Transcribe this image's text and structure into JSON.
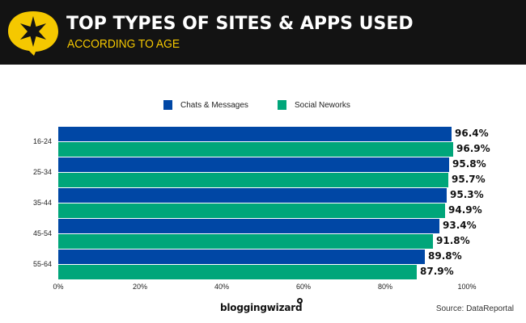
{
  "header": {
    "title": "TOP TYPES OF SITES & APPS USED",
    "subtitle": "ACCORDING TO AGE",
    "logo_icon": "star-speech-bubble-icon",
    "bg_color": "#131313",
    "accent_color": "#f5c800"
  },
  "legend": [
    {
      "label": "Chats & Messages",
      "color": "#0047a5"
    },
    {
      "label": "Social Neworks",
      "color": "#00a67a"
    }
  ],
  "rows": [
    {
      "label": "16-24",
      "chats": "96.4%",
      "social": "96.9%"
    },
    {
      "label": "25-34",
      "chats": "95.8%",
      "social": "95.7%"
    },
    {
      "label": "35-44",
      "chats": "95.3%",
      "social": "94.9%"
    },
    {
      "label": "45-54",
      "chats": "93.4%",
      "social": "91.8%"
    },
    {
      "label": "55-64",
      "chats": "89.8%",
      "social": "87.9%"
    }
  ],
  "axis": {
    "ticks": [
      "0%",
      "20%",
      "40%",
      "60%",
      "80%",
      "100%"
    ]
  },
  "footer": {
    "brand": "bloggingwizard",
    "source": "Source: DataReportal"
  },
  "chart_data": {
    "type": "bar",
    "orientation": "horizontal",
    "title": "TOP TYPES OF SITES & APPS USED",
    "subtitle": "ACCORDING TO AGE",
    "categories": [
      "16-24",
      "25-34",
      "35-44",
      "45-54",
      "55-64"
    ],
    "series": [
      {
        "name": "Chats & Messages",
        "color": "#0047a5",
        "values": [
          96.4,
          95.8,
          95.3,
          93.4,
          89.8
        ]
      },
      {
        "name": "Social Neworks",
        "color": "#00a67a",
        "values": [
          96.9,
          95.7,
          94.9,
          91.8,
          87.9
        ]
      }
    ],
    "xlabel": "",
    "ylabel": "",
    "xlim": [
      0,
      100
    ],
    "xticks": [
      "0%",
      "20%",
      "40%",
      "60%",
      "80%",
      "100%"
    ],
    "grid": false,
    "legend_position": "top",
    "data_labels": true,
    "source": "Source: DataReportal"
  }
}
